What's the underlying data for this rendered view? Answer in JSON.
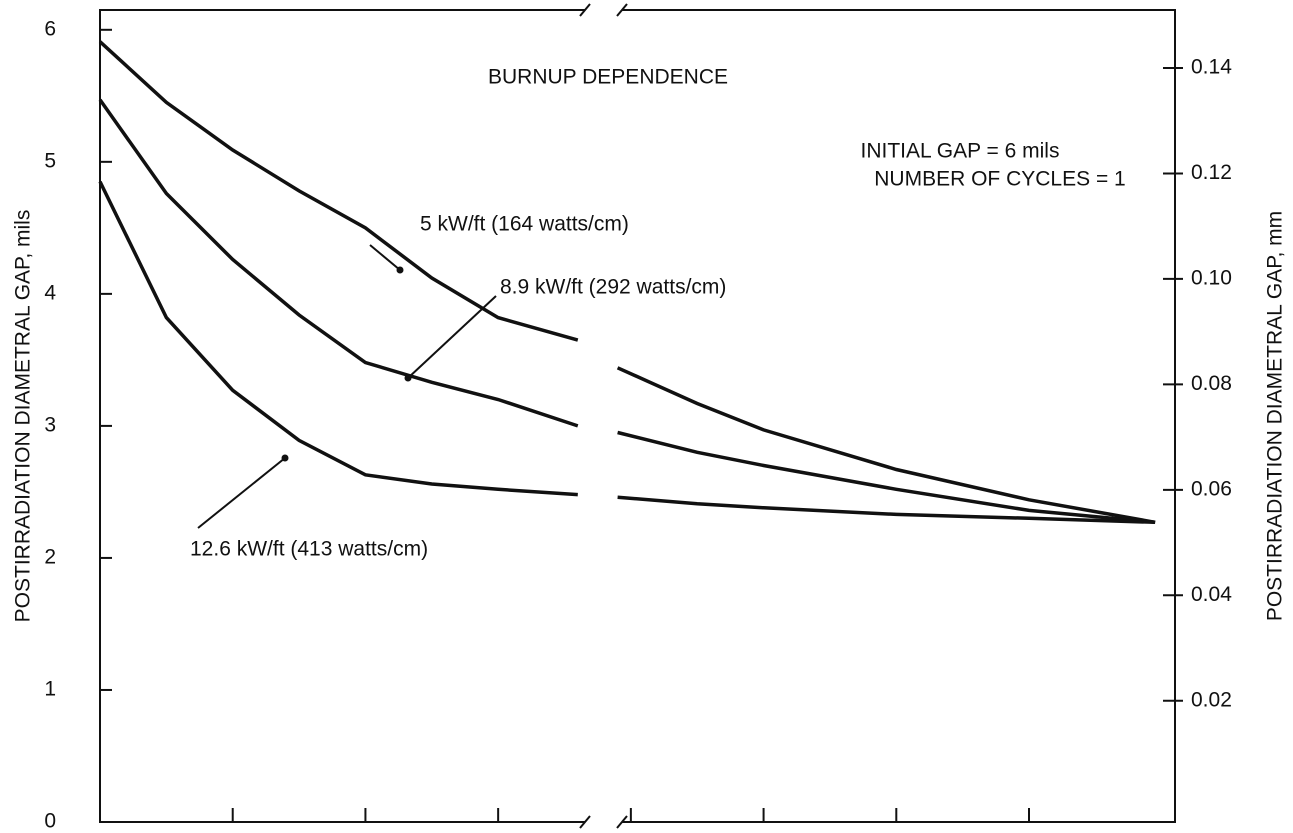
{
  "chart_data": {
    "type": "line",
    "title": "BURNUP DEPENDENCE",
    "annotations": [
      "INITIAL GAP = 6 mils",
      "NUMBER OF CYCLES = 1"
    ],
    "ylabel": "POSTIRRADIATION DIAMETRAL GAP, mils",
    "y2label": "POSTIRRADIATION DIAMETRAL GAP, mm",
    "x": [
      0,
      0.5,
      1,
      1.5,
      2,
      2.5,
      3,
      3.6,
      null,
      3.9,
      4.5,
      5,
      6,
      7,
      7.95
    ],
    "series": [
      {
        "name": "5 kW/ft (164 watts/cm)",
        "color": "#111111",
        "values": [
          5.91,
          5.45,
          5.09,
          4.78,
          4.5,
          4.12,
          3.82,
          3.65,
          null,
          3.44,
          3.17,
          2.97,
          2.67,
          2.44,
          2.27
        ]
      },
      {
        "name": "8.9 kW/ft (292 watts/cm)",
        "color": "#111111",
        "values": [
          5.47,
          4.76,
          4.26,
          3.84,
          3.48,
          3.33,
          3.2,
          3.0,
          null,
          2.95,
          2.8,
          2.7,
          2.52,
          2.36,
          2.27
        ]
      },
      {
        "name": "12.6 kW/ft (413 watts/cm)",
        "color": "#111111",
        "values": [
          4.85,
          3.82,
          3.27,
          2.89,
          2.63,
          2.56,
          2.52,
          2.48,
          null,
          2.46,
          2.41,
          2.38,
          2.33,
          2.3,
          2.27
        ]
      }
    ],
    "xlim": [
      0,
      8.1
    ],
    "xticks": [
      1,
      2,
      3,
      4,
      5,
      6,
      7
    ],
    "ylim": [
      0,
      6.15
    ],
    "yticks": [
      0,
      1,
      2,
      3,
      4,
      5,
      6
    ],
    "y2lim": [
      -0.003,
      0.151
    ],
    "y2ticks": [
      0.02,
      0.04,
      0.06,
      0.08,
      {
        "value": 0.1,
        "label": "0.10"
      },
      0.12,
      0.14
    ],
    "grid": false
  }
}
